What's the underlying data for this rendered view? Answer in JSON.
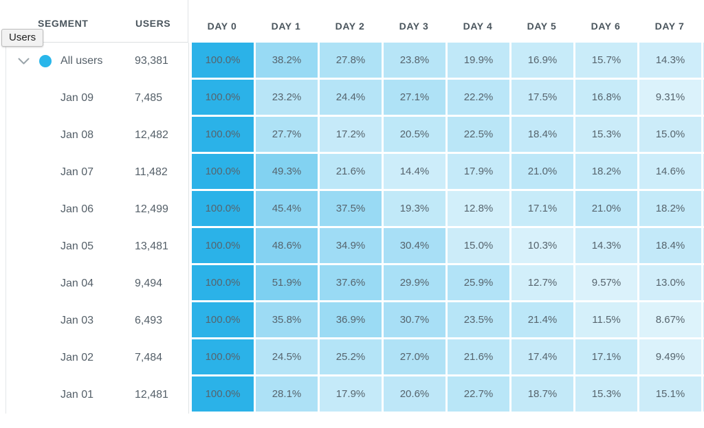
{
  "tooltip": {
    "label": "Users"
  },
  "header": {
    "segment": "SEGMENT",
    "users": "USERS",
    "days": [
      "DAY 0",
      "DAY 1",
      "DAY 2",
      "DAY 3",
      "DAY 4",
      "DAY 5",
      "DAY 6",
      "DAY 7"
    ]
  },
  "rows": [
    {
      "segment": "All users",
      "users": "93,381",
      "expandable": true,
      "values": [
        "100.0%",
        "38.2%",
        "27.8%",
        "23.8%",
        "19.9%",
        "16.9%",
        "15.7%",
        "14.3%"
      ]
    },
    {
      "segment": "Jan 09",
      "users": "7,485",
      "expandable": false,
      "values": [
        "100.0%",
        "23.2%",
        "24.4%",
        "27.1%",
        "22.2%",
        "17.5%",
        "16.8%",
        "9.31%"
      ]
    },
    {
      "segment": "Jan 08",
      "users": "12,482",
      "expandable": false,
      "values": [
        "100.0%",
        "27.7%",
        "17.2%",
        "20.5%",
        "22.5%",
        "18.4%",
        "15.3%",
        "15.0%"
      ]
    },
    {
      "segment": "Jan 07",
      "users": "11,482",
      "expandable": false,
      "values": [
        "100.0%",
        "49.3%",
        "21.6%",
        "14.4%",
        "17.9%",
        "21.0%",
        "18.2%",
        "14.6%"
      ]
    },
    {
      "segment": "Jan 06",
      "users": "12,499",
      "expandable": false,
      "values": [
        "100.0%",
        "45.4%",
        "37.5%",
        "19.3%",
        "12.8%",
        "17.1%",
        "21.0%",
        "18.2%"
      ]
    },
    {
      "segment": "Jan 05",
      "users": "13,481",
      "expandable": false,
      "values": [
        "100.0%",
        "48.6%",
        "34.9%",
        "30.4%",
        "15.0%",
        "10.3%",
        "14.3%",
        "18.4%"
      ]
    },
    {
      "segment": "Jan 04",
      "users": "9,494",
      "expandable": false,
      "values": [
        "100.0%",
        "51.9%",
        "37.6%",
        "29.9%",
        "25.9%",
        "12.7%",
        "9.57%",
        "13.0%"
      ]
    },
    {
      "segment": "Jan 03",
      "users": "6,493",
      "expandable": false,
      "values": [
        "100.0%",
        "35.8%",
        "36.9%",
        "30.7%",
        "23.5%",
        "21.4%",
        "11.5%",
        "8.67%"
      ]
    },
    {
      "segment": "Jan 02",
      "users": "7,484",
      "expandable": false,
      "values": [
        "100.0%",
        "24.5%",
        "25.2%",
        "27.0%",
        "21.6%",
        "17.4%",
        "17.1%",
        "9.49%"
      ]
    },
    {
      "segment": "Jan 01",
      "users": "12,481",
      "expandable": false,
      "values": [
        "100.0%",
        "28.1%",
        "17.9%",
        "20.6%",
        "22.7%",
        "18.7%",
        "15.3%",
        "15.1%"
      ]
    }
  ],
  "heatmap": {
    "base_color": "#2BB2E8",
    "exponent": 0.75,
    "sliver_alpha": 0.25,
    "dot_color": "#29B6EA",
    "chevron_color": "#9AA4AA"
  }
}
